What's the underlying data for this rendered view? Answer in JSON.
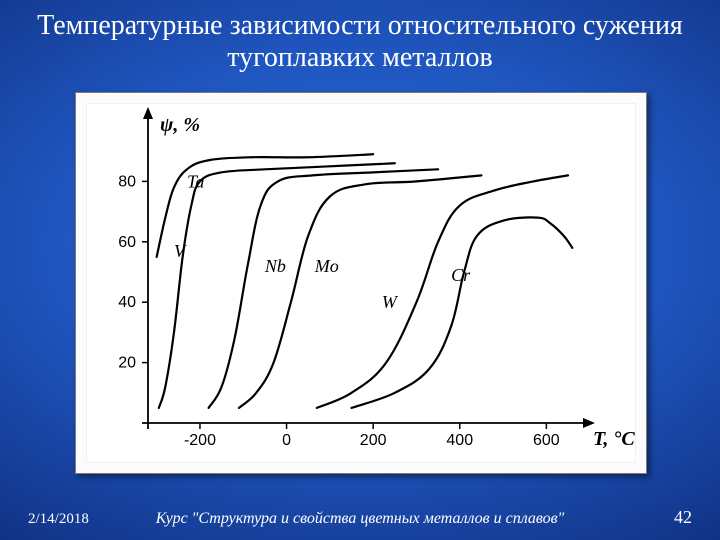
{
  "title": "Температурные зависимости относительного сужения тугоплавких металлов",
  "footer": {
    "date": "2/14/2018",
    "course": "Курс \"Структура и свойства цветных металлов и сплавов\"",
    "slide_number": "42"
  },
  "chart": {
    "type": "line",
    "background_color": "#ffffff",
    "panel_color": "#fcfcfc",
    "panel_border": "#7a7a7a",
    "axis_color": "#000000",
    "line_color": "#000000",
    "line_width": 2.2,
    "ylabel": "ψ, %",
    "xlabel": "T, °C",
    "axis_font_style": "italic",
    "axis_fontsize": 20,
    "tick_fontsize": 16,
    "label_fontsize": 18,
    "xlim": [
      -320,
      680
    ],
    "ylim": [
      0,
      100
    ],
    "xticks": [
      -200,
      0,
      200,
      400,
      600
    ],
    "yticks": [
      20,
      40,
      60,
      80
    ],
    "series": {
      "Ta": {
        "label": "Ta",
        "label_xy": [
          -230,
          78
        ],
        "points": [
          [
            -300,
            55
          ],
          [
            -280,
            68
          ],
          [
            -260,
            78
          ],
          [
            -230,
            84
          ],
          [
            -180,
            87
          ],
          [
            -80,
            88
          ],
          [
            50,
            88
          ],
          [
            200,
            89
          ]
        ]
      },
      "V": {
        "label": "V",
        "label_xy": [
          -260,
          55
        ],
        "points": [
          [
            -295,
            5
          ],
          [
            -280,
            12
          ],
          [
            -260,
            30
          ],
          [
            -240,
            55
          ],
          [
            -220,
            72
          ],
          [
            -200,
            80
          ],
          [
            -150,
            83
          ],
          [
            -50,
            84
          ],
          [
            100,
            85
          ],
          [
            250,
            86
          ]
        ]
      },
      "Nb": {
        "label": "Nb",
        "label_xy": [
          -50,
          50
        ],
        "points": [
          [
            -180,
            5
          ],
          [
            -150,
            12
          ],
          [
            -120,
            28
          ],
          [
            -90,
            52
          ],
          [
            -60,
            72
          ],
          [
            -20,
            80
          ],
          [
            60,
            82
          ],
          [
            200,
            83
          ],
          [
            350,
            84
          ]
        ]
      },
      "Mo": {
        "label": "Mo",
        "label_xy": [
          65,
          50
        ],
        "points": [
          [
            -110,
            5
          ],
          [
            -70,
            10
          ],
          [
            -30,
            20
          ],
          [
            10,
            40
          ],
          [
            50,
            62
          ],
          [
            100,
            75
          ],
          [
            180,
            79
          ],
          [
            300,
            80
          ],
          [
            450,
            82
          ]
        ]
      },
      "W": {
        "label": "W",
        "label_xy": [
          220,
          38
        ],
        "points": [
          [
            70,
            5
          ],
          [
            150,
            10
          ],
          [
            230,
            20
          ],
          [
            300,
            40
          ],
          [
            350,
            60
          ],
          [
            400,
            72
          ],
          [
            480,
            77
          ],
          [
            570,
            80
          ],
          [
            650,
            82
          ]
        ]
      },
      "Cr": {
        "label": "Cr",
        "label_xy": [
          380,
          47
        ],
        "points": [
          [
            150,
            5
          ],
          [
            250,
            10
          ],
          [
            330,
            18
          ],
          [
            380,
            32
          ],
          [
            410,
            50
          ],
          [
            440,
            62
          ],
          [
            500,
            67
          ],
          [
            580,
            68
          ],
          [
            610,
            66
          ],
          [
            640,
            62
          ],
          [
            660,
            58
          ]
        ]
      }
    }
  }
}
